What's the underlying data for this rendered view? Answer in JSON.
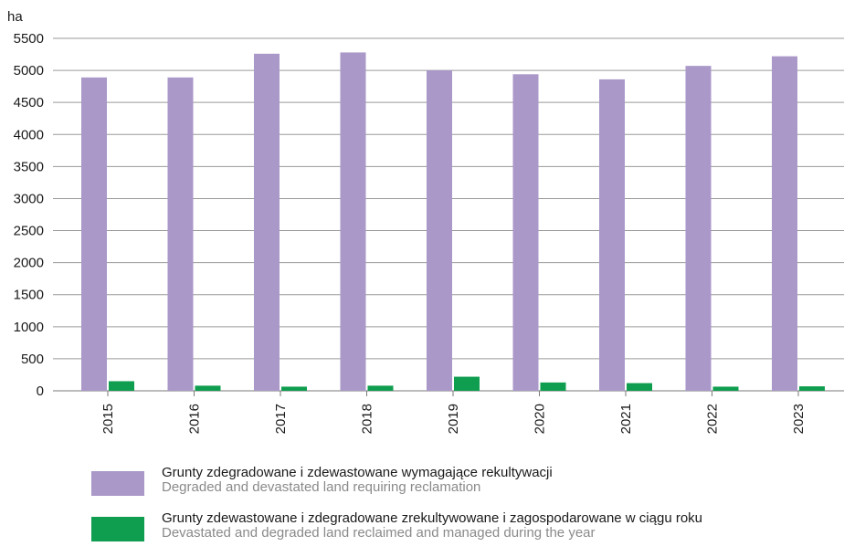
{
  "chart_data": {
    "type": "bar",
    "ylabel": "ha",
    "ylim": [
      0,
      5500
    ],
    "yticks": [
      0,
      500,
      1000,
      1500,
      2000,
      2500,
      3000,
      3500,
      4000,
      4500,
      5000,
      5500
    ],
    "grid": true,
    "legend_position": "bottom",
    "categories": [
      "2015",
      "2016",
      "2017",
      "2018",
      "2019",
      "2020",
      "2021",
      "2022",
      "2023"
    ],
    "series": [
      {
        "name": "Grunty zdegradowane i zdewastowane wymagające rekultywacji",
        "name_en": "Degraded and devastated land requiring reclamation",
        "color": "#a998c8",
        "values": [
          4890,
          4890,
          5260,
          5280,
          5000,
          4940,
          4860,
          5070,
          5220
        ]
      },
      {
        "name": "Grunty zdewastowane i zdegradowane zrekultywowane i zagospodarowane w ciągu roku",
        "name_en": "Devastated and degraded land reclaimed and managed during the year",
        "color": "#0f9d4f",
        "values": [
          150,
          80,
          65,
          80,
          220,
          130,
          120,
          65,
          70
        ]
      }
    ]
  },
  "legend": [
    {
      "label_pl": "Grunty zdegradowane i zdewastowane wymagające rekultywacji",
      "label_en": "Degraded and devastated land requiring reclamation",
      "color": "#a998c8"
    },
    {
      "label_pl": "Grunty zdewastowane i zdegradowane zrekultywowane i zagospodarowane w ciągu roku",
      "label_en": "Devastated and degraded land reclaimed and managed during the year",
      "color": "#0f9d4f"
    }
  ]
}
